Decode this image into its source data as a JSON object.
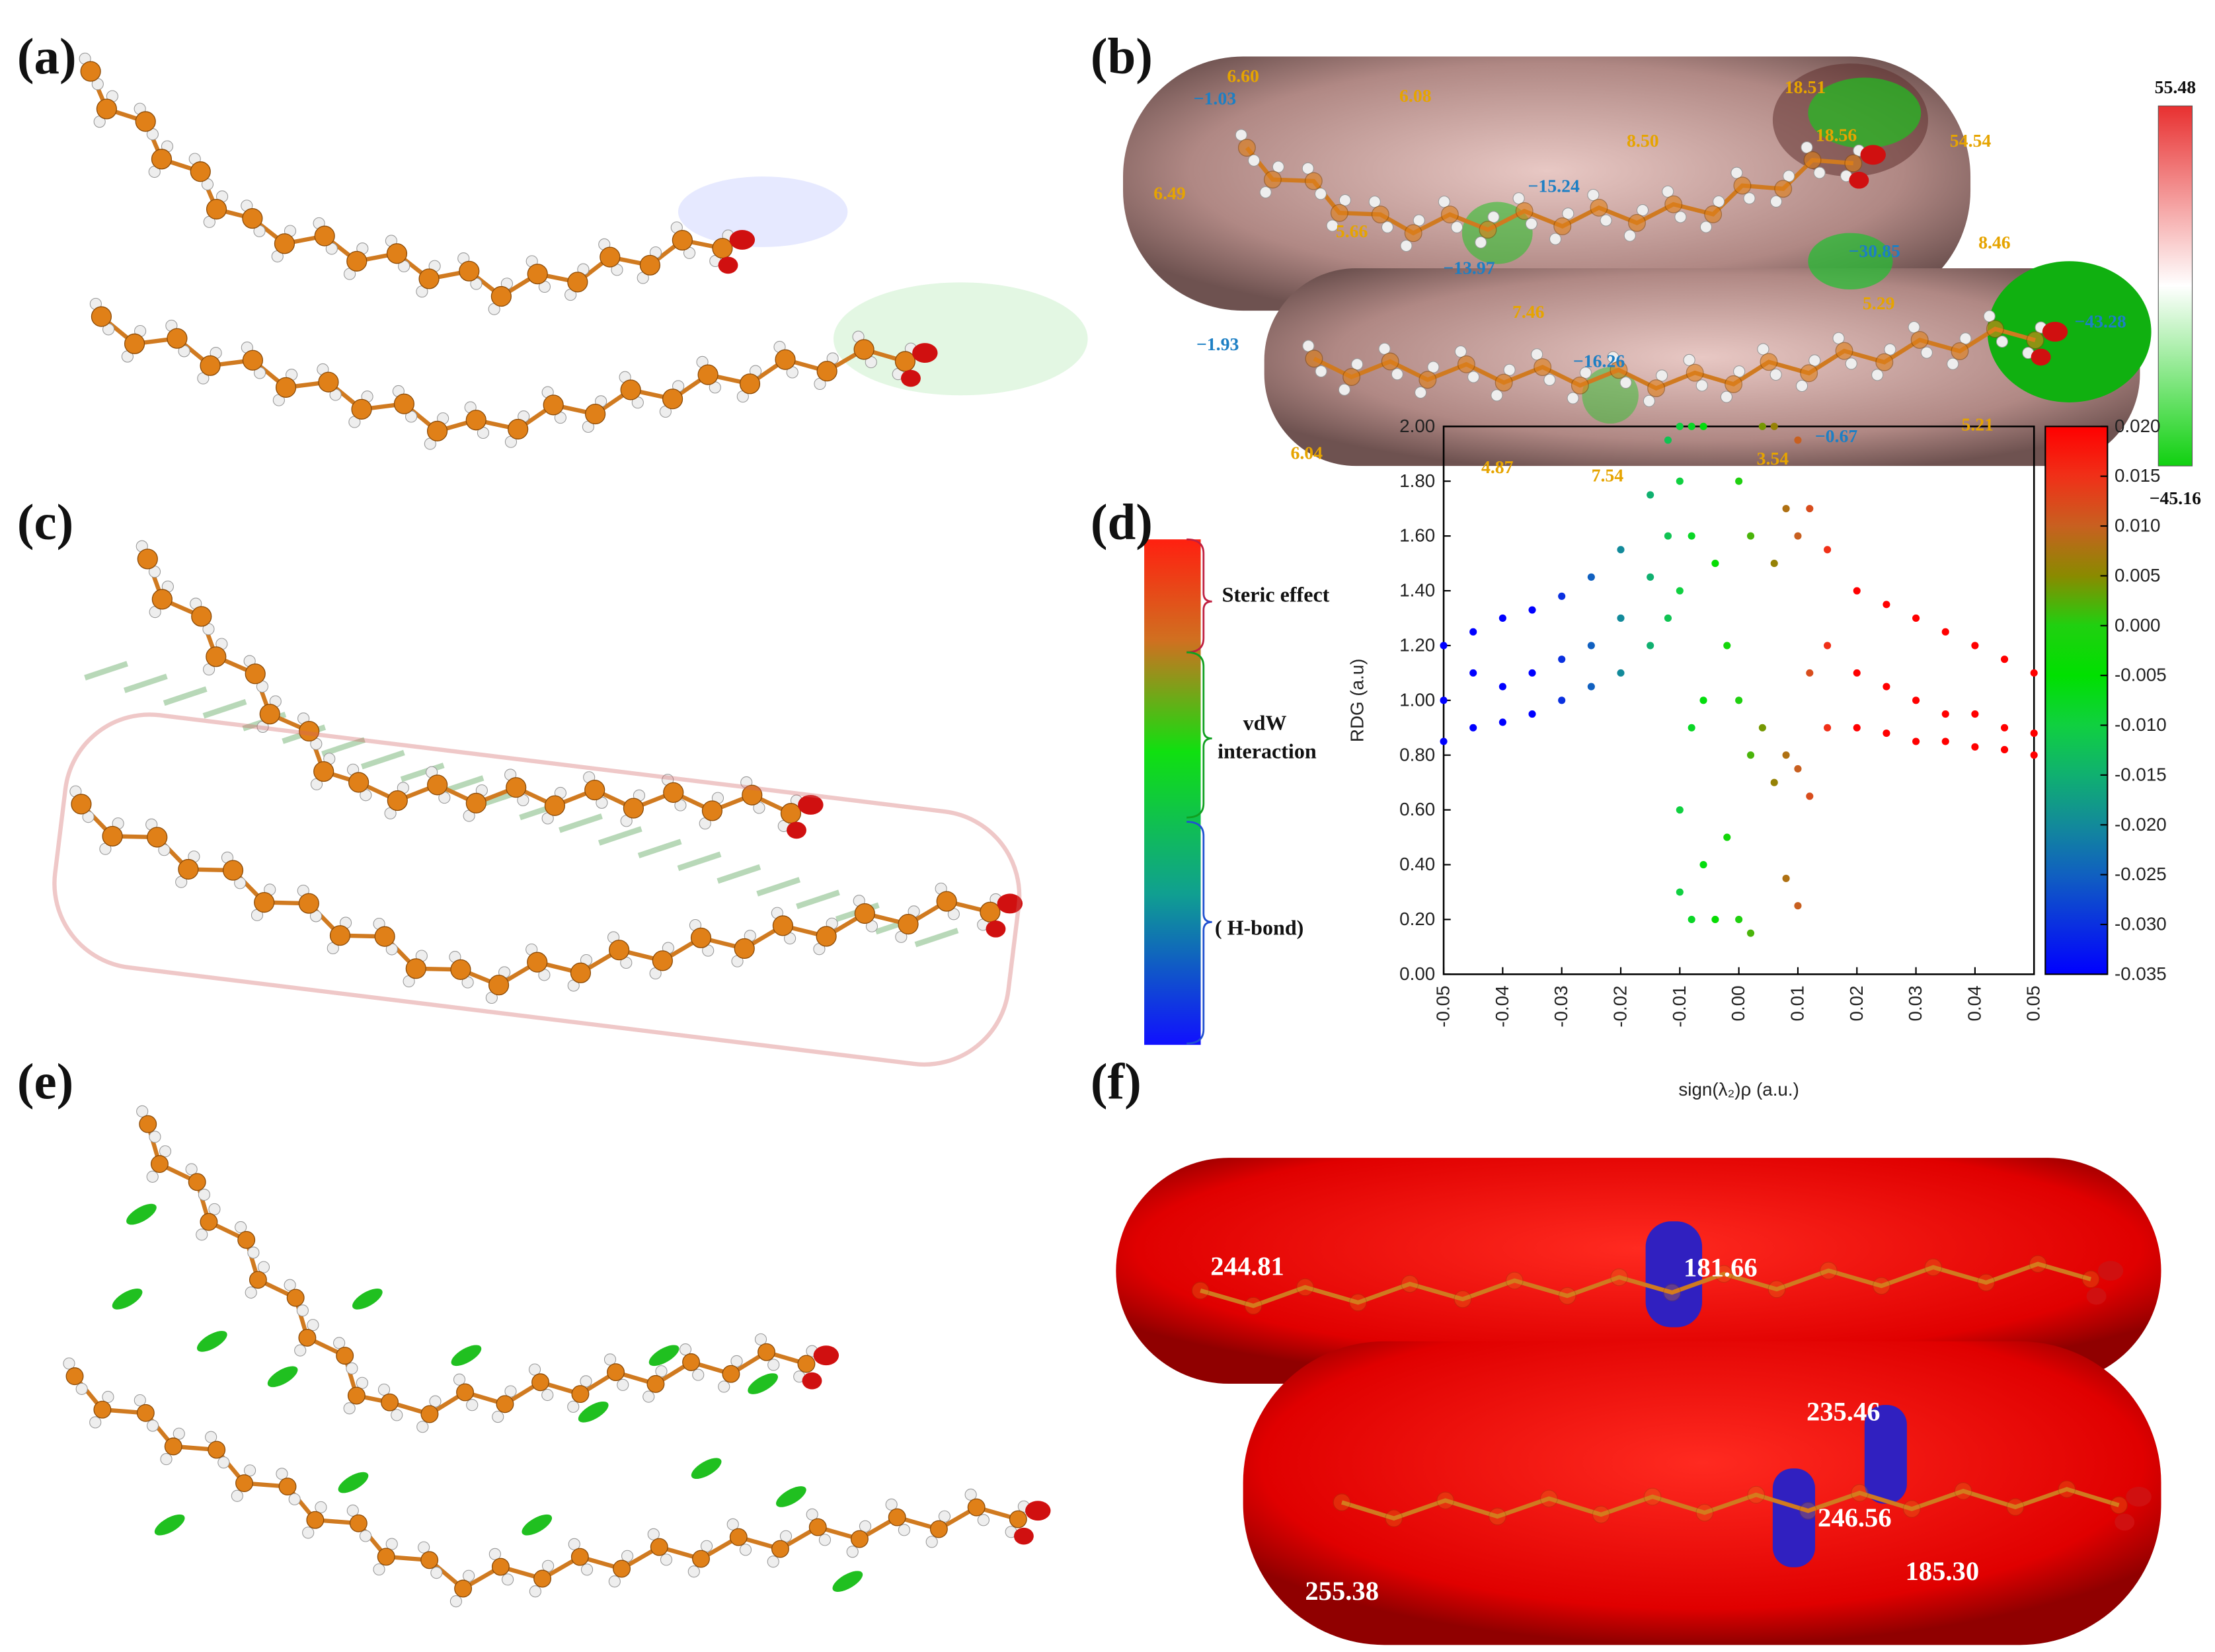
{
  "figure": {
    "panel_labels": [
      "(a)",
      "(b)",
      "(c)",
      "(d)",
      "(e)",
      "(f)"
    ],
    "esp_map": {
      "colorbar_max": "55.48",
      "colorbar_min": "−45.16",
      "positive_color": "#e6a400",
      "negative_color": "#1d7fc4",
      "positive_labels": [
        "6.60",
        "6.08",
        "18.51",
        "8.50",
        "18.56",
        "54.54",
        "6.49",
        "5.66",
        "8.46",
        "7.46",
        "5.29",
        "5.21",
        "6.04",
        "4.87",
        "7.54",
        "3.54"
      ],
      "negative_labels": [
        "−1.03",
        "−15.24",
        "−13.97",
        "−30.85",
        "−43.28",
        "−1.93",
        "−16.26",
        "−0.67"
      ]
    },
    "nci_scale": {
      "steric": "Steric effect",
      "vdw": [
        "vdW",
        "interaction"
      ],
      "hbond": "( H-bond)"
    },
    "esp_extremes": [
      "244.81",
      "181.66",
      "235.46",
      "246.56",
      "185.30",
      "255.38"
    ]
  },
  "chart_data": {
    "type": "scatter",
    "x_label": "sign(λ₂)ρ (a.u.)",
    "y_label": "RDG (a.u)",
    "xlim": [
      -0.05,
      0.05
    ],
    "xticks": [
      -0.05,
      -0.04,
      -0.03,
      -0.02,
      -0.01,
      {
        "value": 0,
        "label": "0.00"
      },
      0.01,
      0.02,
      0.03,
      0.04,
      0.05
    ],
    "ylim": [
      0,
      2
    ],
    "yticks": [
      {
        "value": 0,
        "label": "0.00"
      },
      {
        "value": 0.2,
        "label": "0.20"
      },
      {
        "value": 0.4,
        "label": "0.40"
      },
      {
        "value": 0.6,
        "label": "0.60"
      },
      {
        "value": 0.8,
        "label": "0.80"
      },
      {
        "value": 1,
        "label": "1.00"
      },
      {
        "value": 1.2,
        "label": "1.20"
      },
      {
        "value": 1.4,
        "label": "1.40"
      },
      {
        "value": 1.6,
        "label": "1.60"
      },
      {
        "value": 1.8,
        "label": "1.80"
      },
      {
        "value": 2,
        "label": "2.00"
      }
    ],
    "colorbar": {
      "lim": [
        -0.035,
        0.02
      ],
      "ticks": [
        -0.035,
        {
          "value": -0.03,
          "label": "-0.030"
        },
        -0.025,
        {
          "value": -0.02,
          "label": "-0.020"
        },
        -0.015,
        {
          "value": -0.01,
          "label": "-0.010"
        },
        -0.005,
        {
          "value": 0,
          "label": "0.000"
        },
        0.005,
        {
          "value": 0.01,
          "label": "0.010"
        },
        0.015,
        {
          "value": 0.02,
          "label": "0.020"
        }
      ],
      "colors": [
        "#0000ff",
        "#0a30e0",
        "#1060c0",
        "#128a9a",
        "#10b070",
        "#10d040",
        "#00e000",
        "#20d010",
        "#8a8a00",
        "#c86020",
        "#f03018",
        "#ff0000"
      ]
    },
    "x": [
      -0.05,
      -0.05,
      -0.05,
      -0.045,
      -0.045,
      -0.045,
      -0.04,
      -0.04,
      -0.04,
      -0.035,
      -0.035,
      -0.035,
      -0.03,
      -0.03,
      -0.03,
      -0.025,
      -0.025,
      -0.025,
      -0.02,
      -0.02,
      -0.02,
      -0.015,
      -0.015,
      -0.015,
      -0.012,
      -0.012,
      -0.012,
      -0.01,
      -0.01,
      -0.01,
      -0.01,
      -0.01,
      -0.008,
      -0.008,
      -0.008,
      -0.008,
      -0.006,
      -0.006,
      -0.006,
      -0.004,
      -0.004,
      -0.002,
      -0.002,
      0,
      0,
      0,
      0.002,
      0.002,
      0.002,
      0.004,
      0.004,
      0.006,
      0.006,
      0.006,
      0.008,
      0.008,
      0.008,
      0.01,
      0.01,
      0.01,
      0.01,
      0.012,
      0.012,
      0.012,
      0.015,
      0.015,
      0.015,
      0.02,
      0.02,
      0.02,
      0.025,
      0.025,
      0.025,
      0.03,
      0.03,
      0.03,
      0.035,
      0.035,
      0.035,
      0.04,
      0.04,
      0.04,
      0.045,
      0.045,
      0.045,
      0.05,
      0.05,
      0.05
    ],
    "values": [
      0.85,
      1.0,
      1.2,
      0.9,
      1.1,
      1.25,
      0.92,
      1.05,
      1.3,
      0.95,
      1.1,
      1.33,
      1.0,
      1.15,
      1.38,
      1.05,
      1.2,
      1.45,
      1.1,
      1.3,
      1.55,
      1.2,
      1.45,
      1.75,
      1.3,
      1.6,
      1.95,
      1.4,
      1.8,
      2.0,
      0.6,
      0.3,
      1.6,
      2.0,
      0.9,
      0.2,
      2.0,
      1.0,
      0.4,
      1.5,
      0.2,
      1.2,
      0.5,
      0.2,
      1.0,
      1.8,
      0.15,
      0.8,
      1.6,
      2.0,
      0.9,
      0.7,
      1.5,
      2.0,
      0.35,
      0.8,
      1.7,
      0.25,
      0.75,
      1.6,
      1.95,
      0.65,
      1.1,
      1.7,
      0.9,
      1.2,
      1.55,
      0.9,
      1.1,
      1.4,
      0.88,
      1.05,
      1.35,
      0.85,
      1.0,
      1.3,
      0.85,
      0.95,
      1.25,
      0.83,
      0.95,
      1.2,
      0.82,
      0.9,
      1.15,
      0.8,
      0.88,
      1.1
    ]
  }
}
